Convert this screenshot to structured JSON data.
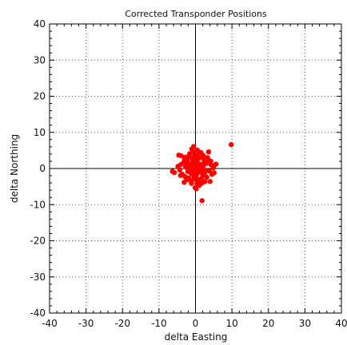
{
  "chart_data": {
    "type": "scatter",
    "title": "Corrected Transponder Positions",
    "xlabel": "delta Easting",
    "ylabel": "delta Northing",
    "xlim": [
      -40,
      40
    ],
    "ylim": [
      -40,
      40
    ],
    "xticks": [
      -40,
      -30,
      -20,
      -10,
      0,
      10,
      20,
      30,
      40
    ],
    "yticks": [
      -40,
      -30,
      -20,
      -10,
      0,
      10,
      20,
      30,
      40
    ],
    "x_tick_labels": [
      "-40",
      "-30",
      "-20",
      "-10",
      "0",
      "10",
      "20",
      "30",
      "40"
    ],
    "y_tick_labels": [
      "-40",
      "-30",
      "-20",
      "-10",
      "0",
      "10",
      "20",
      "30",
      "40"
    ],
    "grid": true,
    "zero_lines": true,
    "point_color": "#ff0000",
    "series": [
      {
        "points": [
          [
            9.8,
            6.6
          ],
          [
            1.8,
            -8.9
          ],
          [
            -5.8,
            -1.1
          ],
          [
            -6.3,
            -0.8
          ],
          [
            -4.6,
            3.7
          ],
          [
            -0.5,
            6.1
          ],
          [
            0.5,
            5.1
          ],
          [
            3.6,
            4.6
          ],
          [
            4.3,
            1.0
          ],
          [
            5.6,
            1.2
          ],
          [
            4.5,
            -1.6
          ],
          [
            4.0,
            -3.6
          ],
          [
            -0.1,
            -5.3
          ],
          [
            0.2,
            -5.6
          ],
          [
            -3.1,
            -3.8
          ],
          [
            -4.0,
            1.1
          ],
          [
            -3.6,
            -1.6
          ],
          [
            -1.1,
            -4.1
          ],
          [
            1.1,
            -4.6
          ],
          [
            2.6,
            -3.6
          ],
          [
            3.1,
            -2.4
          ],
          [
            3.6,
            2.3
          ],
          [
            2.1,
            3.6
          ],
          [
            -1.6,
            4.1
          ],
          [
            -2.8,
            3.1
          ],
          [
            -3.9,
            3.5
          ],
          [
            -4.3,
            -0.4
          ],
          [
            -4.8,
            0.6
          ],
          [
            4.9,
            0.2
          ],
          [
            3.3,
            3.0
          ],
          [
            -2.4,
            -3.1
          ],
          [
            -0.6,
            4.6
          ],
          [
            1.5,
            4.4
          ],
          [
            0.8,
            -3.3
          ],
          [
            -1.8,
            -2.6
          ],
          [
            2.0,
            -2.0
          ],
          [
            2.4,
            1.8
          ],
          [
            -2.2,
            2.2
          ],
          [
            -2.7,
            0.4
          ],
          [
            2.8,
            -0.5
          ],
          [
            0.0,
            2.6
          ],
          [
            0.2,
            -2.4
          ],
          [
            -1.4,
            1.2
          ],
          [
            1.3,
            1.1
          ],
          [
            -1.2,
            -1.3
          ],
          [
            1.2,
            -1.0
          ],
          [
            -0.4,
            0.5
          ],
          [
            0.5,
            -0.4
          ],
          [
            0.0,
            0.0
          ],
          [
            -0.8,
            0.1
          ],
          [
            0.9,
            0.3
          ],
          [
            0.1,
            1.0
          ],
          [
            -0.2,
            -0.9
          ],
          [
            -1.7,
            0.2
          ],
          [
            1.8,
            0.0
          ],
          [
            -0.9,
            2.9
          ],
          [
            1.0,
            2.9
          ],
          [
            -2.1,
            -0.8
          ],
          [
            2.1,
            0.7
          ],
          [
            -0.4,
            -2.9
          ],
          [
            0.7,
            3.8
          ],
          [
            -3.3,
            1.6
          ],
          [
            3.0,
            1.4
          ],
          [
            -1.2,
            -3.5
          ],
          [
            1.6,
            -2.8
          ],
          [
            -0.3,
            3.4
          ],
          [
            3.8,
            -0.7
          ],
          [
            -2.9,
            -2.2
          ],
          [
            2.3,
            2.7
          ],
          [
            -3.0,
            2.4
          ],
          [
            4.2,
            2.0
          ],
          [
            -4.1,
            -1.9
          ],
          [
            0.4,
            -4.1
          ],
          [
            -1.0,
            5.4
          ],
          [
            5.1,
            -1.2
          ],
          [
            -0.8,
            1.8
          ],
          [
            0.6,
            1.6
          ],
          [
            -1.5,
            -0.3
          ],
          [
            1.6,
            -0.4
          ],
          [
            0.3,
            -1.6
          ],
          [
            -0.6,
            -1.8
          ],
          [
            -2.3,
            1.0
          ],
          [
            2.5,
            -1.3
          ],
          [
            -1.9,
            3.3
          ],
          [
            1.8,
            -4.0
          ]
        ]
      }
    ]
  }
}
